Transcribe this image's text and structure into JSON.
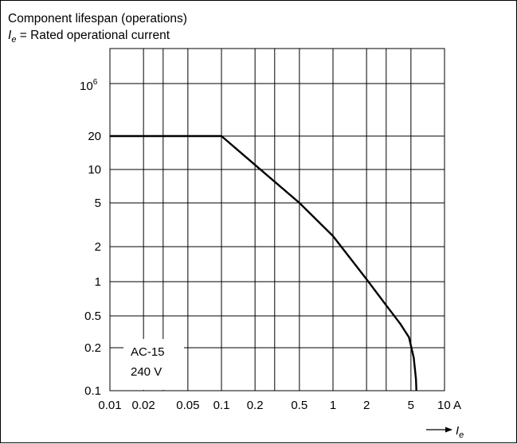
{
  "chart_data": {
    "type": "line",
    "title_line1": "Component lifespan (operations)",
    "title_line2_symbol": "I",
    "title_line2_subscript": "e",
    "title_line2_rest": " = Rated operational current",
    "x_scale": "log",
    "y_scale": "log",
    "xlim": [
      0.01,
      10
    ],
    "ylim_labels_top": "10",
    "ylim_labels_top_exp": "6",
    "x_ticks": [
      {
        "value": 0.01,
        "label": "0.01"
      },
      {
        "value": 0.02,
        "label": "0.02"
      },
      {
        "value": 0.05,
        "label": "0.05"
      },
      {
        "value": 0.1,
        "label": "0.1"
      },
      {
        "value": 0.2,
        "label": "0.2"
      },
      {
        "value": 0.5,
        "label": "0.5"
      },
      {
        "value": 1,
        "label": "1"
      },
      {
        "value": 2,
        "label": "2"
      },
      {
        "value": 5,
        "label": "5"
      },
      {
        "value": 10,
        "label": "10 A"
      }
    ],
    "y_ticks": [
      {
        "value": 0.1,
        "label": "0.1"
      },
      {
        "value": 0.2,
        "label": "0.2"
      },
      {
        "value": 0.5,
        "label": "0.5"
      },
      {
        "value": 1,
        "label": "1"
      },
      {
        "value": 2,
        "label": "2"
      },
      {
        "value": 5,
        "label": "5"
      },
      {
        "value": 10,
        "label": "10"
      },
      {
        "value": 20,
        "label": "20"
      },
      {
        "value": 100,
        "label": ""
      }
    ],
    "x_axis_symbol": "I",
    "x_axis_subscript": "e",
    "series": [
      {
        "x": [
          0.01,
          0.1,
          0.2,
          0.5,
          1,
          2,
          3,
          4,
          4.8,
          5.3,
          5.55,
          5.6
        ],
        "y": [
          20,
          20,
          11,
          5,
          2.5,
          1.05,
          0.62,
          0.4,
          0.27,
          0.17,
          0.12,
          0.1
        ]
      }
    ],
    "annotation_line1": "AC-15",
    "annotation_line2": "240 V",
    "grid": true,
    "line_color": "#000000"
  }
}
